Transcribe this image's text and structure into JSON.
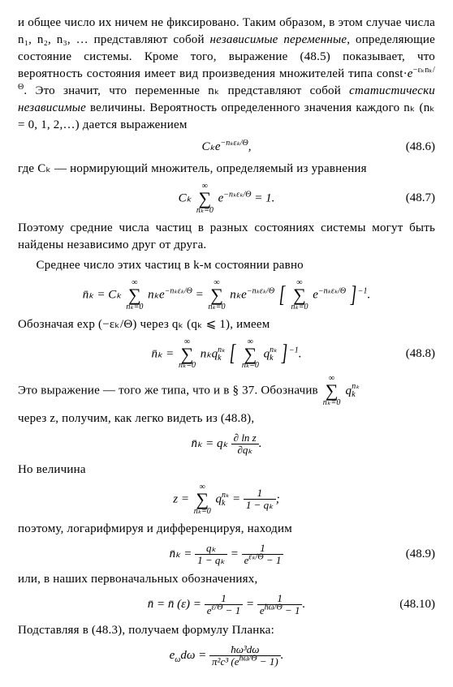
{
  "para1": "и общее число их ничем не фиксировано. Таким образом, в этом случае числа n₁, n₂, n₃, … представляют собой ",
  "para1_ital": "независимые переменные",
  "para1_cont": ", определяющие состояние системы. Кроме того, выражение (48.5) показывает, что вероятность состояния имеет вид произведения множителей типа const·",
  "para1_exp": "e",
  "para1_expsup": "−εₖnₖ/Θ",
  "para1_cont2": ". Это значит, что переменные nₖ представляют собой ",
  "para1_ital2": "статистически независимые",
  "para1_cont3": " величины. Вероятность определенного значения каждого nₖ (nₖ = 0, 1, 2,…) дается выражением",
  "eq486": {
    "lhs": "Cₖe",
    "exp": "−nₖεₖ/Θ",
    "num": "(48.6)"
  },
  "para2": "где Cₖ — нормирующий множитель, определяемый из уравнения",
  "eq487": {
    "lhs": "Cₖ",
    "sumtop": "∞",
    "sumbot": "nₖ=0",
    "body": "e",
    "bodyexp": "−nₖεₖ/Θ",
    "rhs": " = 1.",
    "num": "(48.7)"
  },
  "para3": "Поэтому средние числа частиц в разных состояниях системы могут быть найдены независимо друг от друга.",
  "para4": "Среднее число этих частиц в k-м состоянии равно",
  "eq_nbar": {
    "lhs": "n̄ₖ = Cₖ",
    "sumtop": "∞",
    "sumbot": "nₖ=0",
    "body1": "nₖe",
    "body1exp": "−nₖεₖ/Θ",
    "mid": " = ",
    "body2": "nₖe",
    "body2exp": "−nₖεₖ/Θ",
    "bracket_body": "e",
    "bracket_bodyexp": "−nₖεₖ/Θ",
    "bracket_pow": "−1",
    "end": "."
  },
  "para5": "Обозначая exp (−εₖ/Θ) через qₖ (qₖ ⩽ 1), имеем",
  "eq488": {
    "lhs": "n̄ₖ = ",
    "sumtop": "∞",
    "sumbot": "nₖ=0",
    "body": "nₖq",
    "bodysub": "k",
    "bodysup": "nₖ",
    "bracket_body": "q",
    "bracket_bodysub": "k",
    "bracket_bodysup": "nₖ",
    "bracket_pow": "−1",
    "end": ".",
    "num": "(48.8)"
  },
  "para6a": "Это выражение — того же типа, что и в § 37. Обозначив ",
  "para6_sumtop": "∞",
  "para6_sumbot": "nₖ=0",
  "para6_body": "q",
  "para6_bodysub": "k",
  "para6_bodysup": "nₖ",
  "para7": "через z, получим, как легко видеть из (48.8),",
  "eq_dln": {
    "lhs": "n̄ₖ = qₖ",
    "num": "∂ ln z",
    "den": "∂qₖ",
    "end": "."
  },
  "para8": "Но величина",
  "eq_z": {
    "lhs": "z = ",
    "sumtop": "∞",
    "sumbot": "nₖ=0",
    "body": "q",
    "bodysub": "k",
    "bodysup": "nₖ",
    "mid": " = ",
    "fracnum": "1",
    "fracden": "1 − qₖ",
    "end": ";"
  },
  "para9": "поэтому, логарифмируя и дифференцируя, находим",
  "eq489": {
    "lhs": "n̄ₖ = ",
    "frac1num": "qₖ",
    "frac1den": "1 − qₖ",
    "mid": " = ",
    "frac2num": "1",
    "frac2den_a": "e",
    "frac2den_exp": "εₖ/Θ",
    "frac2den_b": " − 1",
    "num": "(48.9)"
  },
  "para10": "или, в наших первоначальных обозначениях,",
  "eq4810": {
    "lhs": "n̄ = n̄ (ε) = ",
    "frac1num": "1",
    "frac1den_a": "e",
    "frac1den_exp": "ε/Θ",
    "frac1den_b": " − 1",
    "mid": " = ",
    "frac2num": "1",
    "frac2den_a": "e",
    "frac2den_exp": "ħω/Θ",
    "frac2den_b": " − 1",
    "end": ".",
    "num": "(48.10)"
  },
  "para11": "Подставляя в (48.3), получаем формулу Планка:",
  "eq_planck": {
    "lhs": "e",
    "lhssub": "ω",
    "lhs2": "dω = ",
    "num": "ħω³dω",
    "den_a": "π²c³ (e",
    "den_exp": "ħω/Θ",
    "den_b": " − 1)",
    "end": "."
  }
}
